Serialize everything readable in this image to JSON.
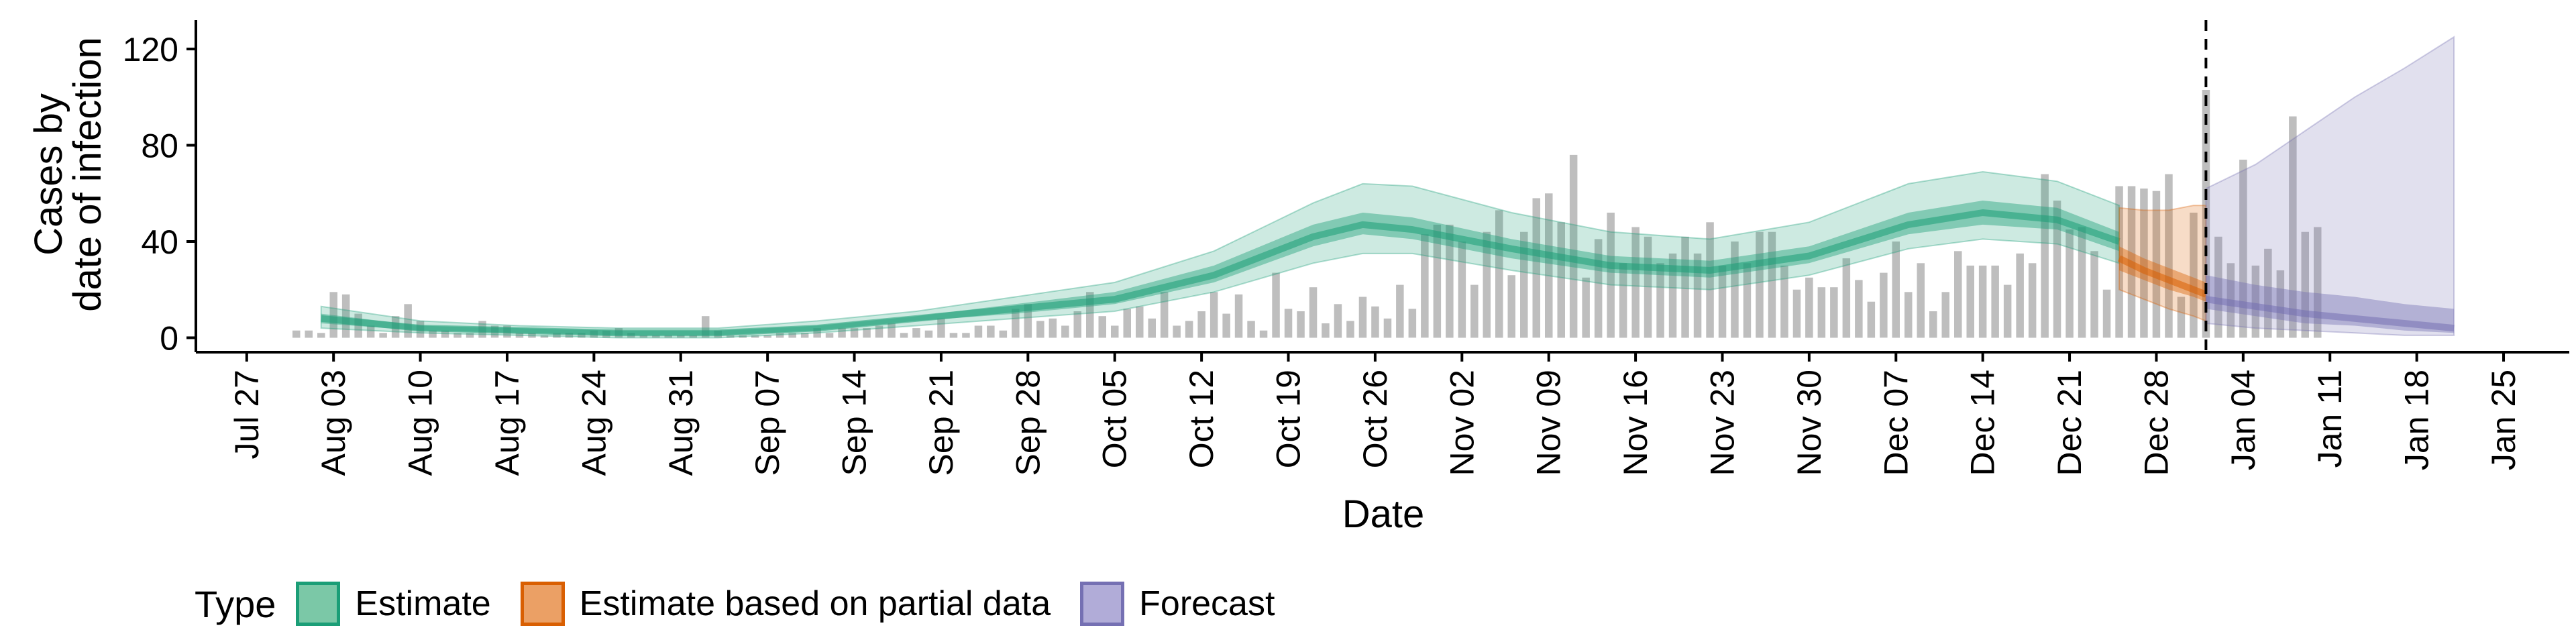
{
  "chart_data": {
    "type": "bar+area",
    "title": "",
    "xlabel": "Date",
    "ylabel_lines": [
      "Cases by",
      "date of infection"
    ],
    "ylim": [
      -6,
      132
    ],
    "y_ticks": [
      0,
      40,
      80,
      120
    ],
    "x_tick_labels": [
      "Jul 27",
      "Aug 03",
      "Aug 10",
      "Aug 17",
      "Aug 24",
      "Aug 31",
      "Sep 07",
      "Sep 14",
      "Sep 21",
      "Sep 28",
      "Oct 05",
      "Oct 12",
      "Oct 19",
      "Oct 26",
      "Nov 02",
      "Nov 09",
      "Nov 16",
      "Nov 23",
      "Nov 30",
      "Dec 07",
      "Dec 14",
      "Dec 21",
      "Dec 28",
      "Jan 04",
      "Jan 11",
      "Jan 18",
      "Jan 25"
    ],
    "grid": false,
    "forecast_line_date": "Jan 01",
    "reported_cases": {
      "start_date": "Jul 31",
      "values": [
        3,
        3,
        2,
        19,
        18,
        10,
        5,
        2,
        9,
        14,
        7,
        3,
        3,
        2,
        2,
        7,
        5,
        5,
        2,
        2,
        1,
        2,
        2,
        2,
        3,
        3,
        4,
        2,
        1,
        1,
        1,
        1,
        1,
        9,
        3,
        1,
        1,
        1,
        1,
        2,
        2,
        2,
        4,
        2,
        4,
        4,
        4,
        5,
        6,
        2,
        4,
        3,
        8,
        2,
        2,
        5,
        5,
        3,
        12,
        14,
        7,
        8,
        5,
        11,
        19,
        9,
        5,
        12,
        13,
        8,
        19,
        5,
        7,
        11,
        19,
        10,
        18,
        7,
        3,
        27,
        12,
        11,
        21,
        6,
        14,
        7,
        17,
        13,
        8,
        22,
        12,
        43,
        47,
        47,
        40,
        22,
        44,
        53,
        26,
        44,
        58,
        60,
        48,
        76,
        25,
        41,
        52,
        31,
        46,
        42,
        31,
        35,
        42,
        35,
        48,
        30,
        40,
        31,
        44,
        44,
        30,
        20,
        25,
        21,
        21,
        33,
        24,
        15,
        27,
        40,
        19,
        31,
        11,
        19,
        36,
        30,
        30,
        30,
        22,
        35,
        31,
        68,
        57,
        45,
        46,
        36,
        20,
        63,
        63,
        62,
        61,
        68,
        17,
        52,
        103,
        42,
        31,
        74,
        30,
        37,
        28,
        92,
        44,
        46
      ]
    },
    "series": [
      {
        "name": "Estimate",
        "color": "#1b9e77",
        "dates": [
          "Aug 02",
          "Aug 10",
          "Aug 18",
          "Aug 26",
          "Sep 03",
          "Sep 11",
          "Sep 19",
          "Sep 27",
          "Oct 05",
          "Oct 13",
          "Oct 21",
          "Oct 25",
          "Oct 29",
          "Nov 06",
          "Nov 14",
          "Nov 22",
          "Nov 30",
          "Dec 08",
          "Dec 14",
          "Dec 20",
          "Dec 25"
        ],
        "median": [
          8,
          4,
          3,
          2,
          2,
          4,
          8,
          12,
          16,
          26,
          42,
          47,
          45,
          37,
          30,
          28,
          34,
          47,
          52,
          49,
          40
        ],
        "inner_lower": [
          6,
          3,
          2,
          1,
          1,
          3,
          7,
          10,
          14,
          23,
          38,
          43,
          41,
          33,
          27,
          25,
          31,
          43,
          47,
          45,
          36
        ],
        "inner_upper": [
          10,
          5,
          4,
          3,
          3,
          5,
          9,
          14,
          19,
          30,
          47,
          52,
          50,
          41,
          34,
          32,
          38,
          52,
          57,
          54,
          44
        ],
        "outer_lower": [
          4,
          2,
          1,
          0,
          0,
          2,
          5,
          8,
          11,
          19,
          31,
          35,
          35,
          28,
          22,
          20,
          26,
          37,
          41,
          39,
          31
        ],
        "outer_upper": [
          13,
          7,
          5,
          4,
          4,
          7,
          11,
          17,
          23,
          36,
          56,
          64,
          63,
          52,
          44,
          41,
          48,
          64,
          69,
          65,
          55
        ]
      },
      {
        "name": "Estimate based on partial data",
        "color": "#d95f02",
        "dates": [
          "Dec 25",
          "Dec 27",
          "Dec 29",
          "Dec 31",
          "Jan 01"
        ],
        "median": [
          33,
          28,
          24,
          20,
          18
        ],
        "inner_lower": [
          28,
          24,
          20,
          17,
          15
        ],
        "inner_upper": [
          38,
          33,
          29,
          25,
          23
        ],
        "outer_lower": [
          20,
          16,
          12,
          9,
          7
        ],
        "outer_upper": [
          54,
          53,
          53,
          55,
          55
        ]
      },
      {
        "name": "Forecast",
        "color": "#7570b3",
        "dates": [
          "Jan 01",
          "Jan 05",
          "Jan 09",
          "Jan 13",
          "Jan 17",
          "Jan 21"
        ],
        "median": [
          16,
          13,
          10,
          8,
          6,
          4
        ],
        "inner_lower": [
          12,
          9,
          6,
          5,
          3,
          2
        ],
        "inner_upper": [
          26,
          22,
          19,
          17,
          14,
          12
        ],
        "outer_lower": [
          6,
          4,
          3,
          2,
          1,
          1
        ],
        "outer_upper": [
          62,
          72,
          86,
          100,
          112,
          125
        ]
      }
    ],
    "legend": {
      "title": "Type",
      "placement": "bottom",
      "items": [
        {
          "label": "Estimate",
          "fill": "#7bc8a7",
          "border": "#1b9e77"
        },
        {
          "label": "Estimate based on partial data",
          "fill": "#eba065",
          "border": "#d95f02"
        },
        {
          "label": "Forecast",
          "fill": "#b1acd8",
          "border": "#7570b3"
        }
      ]
    }
  }
}
